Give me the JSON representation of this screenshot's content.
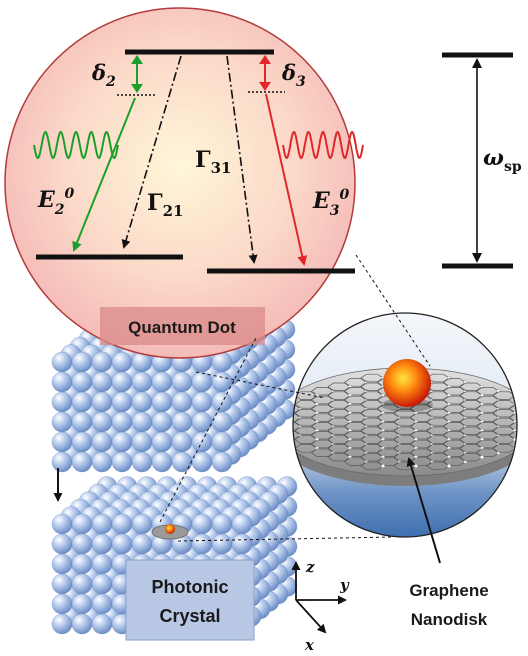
{
  "labels": {
    "delta2": "δ",
    "delta2_sub": "2",
    "delta3": "δ",
    "delta3_sub": "3",
    "gamma31": "Γ",
    "gamma31_sub": "31",
    "gamma21": "Γ",
    "gamma21_sub": "21",
    "e2": "E",
    "e2_sub": "2",
    "e2_sup": "0",
    "e3": "E",
    "e3_sub": "3",
    "e3_sup": "0",
    "omega": "ω",
    "omega_sub": "sp",
    "quantum_dot": "Quantum Dot",
    "photonic_line1": "Photonic",
    "photonic_line2": "Crystal",
    "graphene_line1": "Graphene",
    "graphene_line2": "Nanodisk",
    "axis_z": "z",
    "axis_y": "y",
    "axis_x": "x"
  },
  "colors": {
    "green_field": "#1aa02a",
    "red_field": "#e0282a",
    "dot_circle_edge": "#b23b3b",
    "qd_label_bg": "#d98a8a",
    "crystal_label_bg": "#b8c8e4",
    "sphere_blue": "#8fb0e0"
  }
}
